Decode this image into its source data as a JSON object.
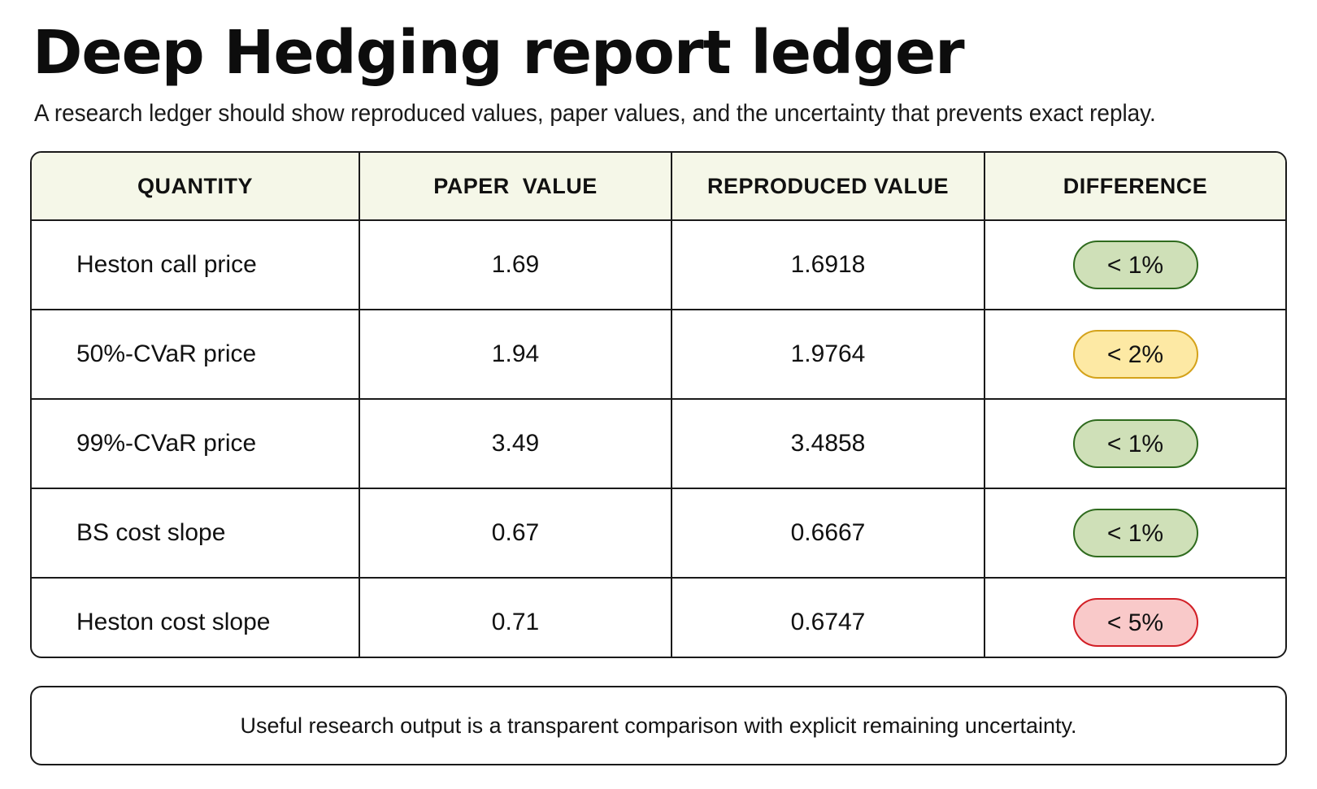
{
  "title": "Deep Hedging report ledger",
  "subtitle": "A research ledger should show reproduced values, paper values, and the uncertainty that prevents exact replay.",
  "table": {
    "headers": [
      "QUANTITY",
      "PAPER  VALUE",
      "REPRODUCED VALUE",
      "DIFFERENCE"
    ],
    "rows": [
      {
        "quantity": "Heston call price",
        "paper": "1.69",
        "reproduced": "1.6918",
        "difference": "< 1%",
        "status": "green"
      },
      {
        "quantity": "50%-CVaR price",
        "paper": "1.94",
        "reproduced": "1.9764",
        "difference": "< 2%",
        "status": "yellow"
      },
      {
        "quantity": "99%-CVaR price",
        "paper": "3.49",
        "reproduced": "3.4858",
        "difference": "< 1%",
        "status": "green"
      },
      {
        "quantity": "BS cost slope",
        "paper": "0.67",
        "reproduced": "0.6667",
        "difference": "< 1%",
        "status": "green"
      },
      {
        "quantity": "Heston cost slope",
        "paper": "0.71",
        "reproduced": "0.6747",
        "difference": "< 5%",
        "status": "red"
      }
    ]
  },
  "status_colors": {
    "green": {
      "fill": "#cfe0b8",
      "border": "#2f6b1e"
    },
    "yellow": {
      "fill": "#fde9a4",
      "border": "#d4a21a"
    },
    "red": {
      "fill": "#f9c9c9",
      "border": "#d21f26"
    }
  },
  "header_background": "#f5f7e8",
  "footer_note": "Useful research output is a transparent comparison with explicit remaining uncertainty."
}
